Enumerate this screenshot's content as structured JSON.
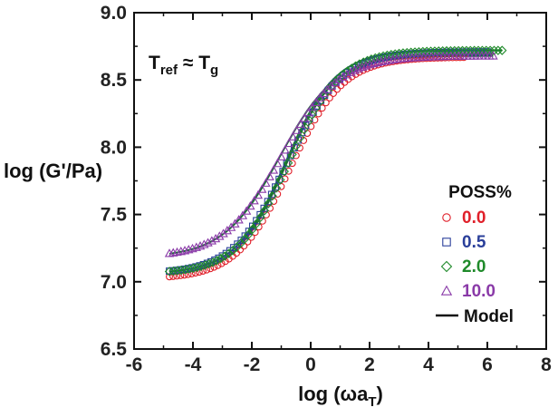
{
  "chart_data": {
    "type": "scatter",
    "title": "",
    "xlabel": "log (ωa",
    "xlabel_sub": "T",
    "xlabel_end": ")",
    "ylabel": "log (G'/Pa)",
    "xlim": [
      -6,
      8
    ],
    "ylim": [
      6.5,
      9.0
    ],
    "x_ticks": [
      -6,
      -4,
      -2,
      0,
      2,
      4,
      6,
      8
    ],
    "x_tick_labels": [
      "-6",
      "-4",
      "-2",
      "0",
      "2",
      "4",
      "6",
      "8"
    ],
    "y_ticks": [
      6.5,
      7.0,
      7.5,
      8.0,
      8.5,
      9.0
    ],
    "y_tick_labels": [
      "6.5",
      "7.0",
      "7.5",
      "8.0",
      "8.5",
      "9.0"
    ],
    "grid": false,
    "legend_position": "right",
    "legend_title": "POSS%",
    "annotation": {
      "main1": "T",
      "sub1": "ref",
      "approx": " ≈ ",
      "main2": "T",
      "sub2": "g"
    },
    "series": [
      {
        "name": "0.0",
        "marker": "circle",
        "color": "#e0202a",
        "x_start": -4.8,
        "x_end": 5.2,
        "points": 80,
        "plateau_low": 7.02,
        "plateau_high": 8.67,
        "center": -0.7,
        "width": 0.9
      },
      {
        "name": "0.5",
        "marker": "square",
        "color": "#2a3f9a",
        "x_start": -4.8,
        "x_end": 6.0,
        "points": 85,
        "plateau_low": 7.06,
        "plateau_high": 8.71,
        "center": -0.8,
        "width": 0.9
      },
      {
        "name": "2.0",
        "marker": "diamond",
        "color": "#1f8a2a",
        "x_start": -4.8,
        "x_end": 6.5,
        "points": 85,
        "plateau_low": 7.06,
        "plateau_high": 8.72,
        "center": -0.75,
        "width": 0.88
      },
      {
        "name": "10.0",
        "marker": "triangle",
        "color": "#8a3aa8",
        "x_start": -4.8,
        "x_end": 6.2,
        "points": 85,
        "plateau_low": 7.18,
        "plateau_high": 8.68,
        "center": -1.0,
        "width": 0.98
      }
    ],
    "model": {
      "name": "Model",
      "color": "#1b6b34",
      "curves": [
        {
          "x_start": -4.8,
          "x_end": 6.2,
          "plateau_low": 7.04,
          "plateau_high": 8.69,
          "center": -0.85,
          "width": 0.85
        },
        {
          "x_start": -4.8,
          "x_end": 6.5,
          "plateau_low": 7.06,
          "plateau_high": 8.72,
          "center": -0.85,
          "width": 0.85
        },
        {
          "x_start": -4.8,
          "x_end": 6.2,
          "plateau_low": 7.18,
          "plateau_high": 8.68,
          "center": -1.05,
          "width": 0.95
        }
      ]
    }
  }
}
